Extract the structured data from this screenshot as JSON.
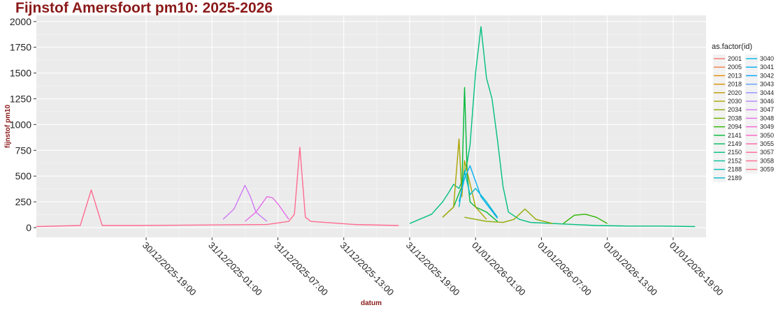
{
  "chart_data": {
    "type": "line",
    "title": "Fijnstof Amersfoort pm10: 2025-2026",
    "xlabel": "datum",
    "ylabel": "fijnstof pm10",
    "ylim": [
      -95,
      2060
    ],
    "yticks": [
      0,
      250,
      500,
      750,
      1000,
      1250,
      1500,
      1750,
      2000
    ],
    "xlim": [
      "2025-12-30T09:00",
      "2026-01-01T22:00"
    ],
    "xtick_values": [
      "2025-12-30T19:00",
      "2025-12-31T01:00",
      "2025-12-31T07:00",
      "2025-12-31T13:00",
      "2025-12-31T19:00",
      "2026-01-01T01:00",
      "2026-01-01T07:00",
      "2026-01-01T13:00",
      "2026-01-01T19:00"
    ],
    "xtick_labels": [
      "30/12/2025-19:00",
      "31/12/2025-01:00",
      "31/12/2025-07:00",
      "31/12/2025-13:00",
      "31/12/2025-19:00",
      "01/01/2026-01:00",
      "01/01/2026-07:00",
      "01/01/2026-13:00",
      "01/01/2026-19:00"
    ],
    "grid": true,
    "background": "#ebebeb",
    "legend": {
      "title": "as.factor(id)",
      "position": "right",
      "entries": [
        "2001",
        "2005",
        "2013",
        "2018",
        "2020",
        "2030",
        "2034",
        "2038",
        "2094",
        "2141",
        "2149",
        "2150",
        "2152",
        "2188",
        "2189",
        "3040",
        "3041",
        "3042",
        "3043",
        "3044",
        "3046",
        "3047",
        "3048",
        "3049",
        "3050",
        "3055",
        "3057",
        "3058",
        "3059"
      ],
      "colors": [
        "#f8766d",
        "#f07e4a",
        "#e38900",
        "#d39200",
        "#c09b00",
        "#a9a400",
        "#8fab00",
        "#6bb100",
        "#2eb600",
        "#00b939",
        "#00bc5e",
        "#00bf7d",
        "#00bf9a",
        "#00bdb5",
        "#00bbcc",
        "#00b5e0",
        "#00aff0",
        "#00a5fd",
        "#619cff",
        "#8f91ff",
        "#b385ff",
        "#d078f5",
        "#e56ee8",
        "#f564d6",
        "#fd61c4",
        "#ff62ad",
        "#ff6898",
        "#ff6c91",
        "#fc7183"
      ],
      "notable_series": [
        {
          "name": "2150",
          "x": [
            "2025-12-31T19:00",
            "2025-12-31T21:00",
            "2025-12-31T22:00",
            "2025-12-31T22:30",
            "2025-12-31T23:00",
            "2025-12-31T23:30",
            "2026-01-01T00:00",
            "2026-01-01T00:15",
            "2026-01-01T00:30",
            "2026-01-01T01:00",
            "2026-01-01T01:30",
            "2026-01-01T02:00",
            "2026-01-01T02:30",
            "2026-01-01T03:00",
            "2026-01-01T03:30",
            "2026-01-01T04:00",
            "2026-01-01T05:00",
            "2026-01-01T06:00",
            "2026-01-01T08:00",
            "2026-01-01T10:00",
            "2026-01-01T12:00",
            "2026-01-01T15:00",
            "2026-01-01T18:00",
            "2026-01-01T21:00"
          ],
          "y": [
            40,
            130,
            250,
            330,
            420,
            380,
            520,
            640,
            800,
            1500,
            1950,
            1450,
            1250,
            850,
            400,
            150,
            80,
            50,
            40,
            30,
            20,
            15,
            15,
            10
          ]
        },
        {
          "name": "2141",
          "x": [
            "2025-12-31T22:00",
            "2025-12-31T23:00",
            "2025-12-31T23:45",
            "2026-01-01T00:00",
            "2026-01-01T00:15",
            "2026-01-01T00:30",
            "2026-01-01T01:00",
            "2026-01-01T02:00",
            "2026-01-01T03:00"
          ],
          "y": [
            100,
            200,
            400,
            1360,
            500,
            250,
            200,
            150,
            60
          ]
        },
        {
          "name": "3058",
          "x": [
            "2025-12-30T09:00",
            "2025-12-30T13:00",
            "2025-12-30T14:00",
            "2025-12-30T15:00",
            "2025-12-30T18:00",
            "2025-12-31T06:00",
            "2025-12-31T08:00",
            "2025-12-31T08:30",
            "2025-12-31T09:00",
            "2025-12-31T09:30",
            "2025-12-31T10:00",
            "2025-12-31T14:00",
            "2025-12-31T18:00"
          ],
          "y": [
            10,
            20,
            365,
            20,
            20,
            30,
            60,
            130,
            780,
            100,
            60,
            30,
            20
          ]
        },
        {
          "name": "3047",
          "x": [
            "2025-12-31T02:00",
            "2025-12-31T03:00",
            "2025-12-31T04:00",
            "2025-12-31T04:30",
            "2025-12-31T05:00",
            "2025-12-31T06:00"
          ],
          "y": [
            80,
            180,
            410,
            300,
            150,
            60
          ]
        },
        {
          "name": "3048",
          "x": [
            "2025-12-31T04:00",
            "2025-12-31T05:00",
            "2025-12-31T06:00",
            "2025-12-31T06:30",
            "2025-12-31T07:00",
            "2025-12-31T08:00"
          ],
          "y": [
            60,
            150,
            300,
            290,
            230,
            80
          ]
        },
        {
          "name": "2030",
          "x": [
            "2025-12-31T22:00",
            "2025-12-31T23:00",
            "2025-12-31T23:30",
            "2025-12-31T23:45",
            "2026-01-01T00:00",
            "2026-01-01T01:00",
            "2026-01-01T02:00"
          ],
          "y": [
            100,
            200,
            860,
            300,
            650,
            200,
            80
          ]
        },
        {
          "name": "2034",
          "x": [
            "2026-01-01T00:00",
            "2026-01-01T02:00",
            "2026-01-01T03:30",
            "2026-01-01T04:30",
            "2026-01-01T05:30",
            "2026-01-01T06:30",
            "2026-01-01T08:00"
          ],
          "y": [
            100,
            60,
            50,
            80,
            180,
            80,
            40
          ]
        },
        {
          "name": "2094",
          "x": [
            "2026-01-01T09:00",
            "2026-01-01T10:00",
            "2026-01-01T11:00",
            "2026-01-01T12:00",
            "2026-01-01T13:00"
          ],
          "y": [
            40,
            120,
            130,
            100,
            40
          ]
        },
        {
          "name": "2189",
          "x": [
            "2025-12-31T23:30",
            "2026-01-01T00:00",
            "2026-01-01T00:30",
            "2026-01-01T01:00",
            "2026-01-01T02:00",
            "2026-01-01T03:00"
          ],
          "y": [
            200,
            550,
            320,
            380,
            250,
            100
          ]
        },
        {
          "name": "3041",
          "x": [
            "2025-12-31T23:30",
            "2026-01-01T00:00",
            "2026-01-01T00:30",
            "2026-01-01T01:30",
            "2026-01-01T03:00"
          ],
          "y": [
            250,
            480,
            600,
            300,
            90
          ]
        }
      ]
    }
  }
}
